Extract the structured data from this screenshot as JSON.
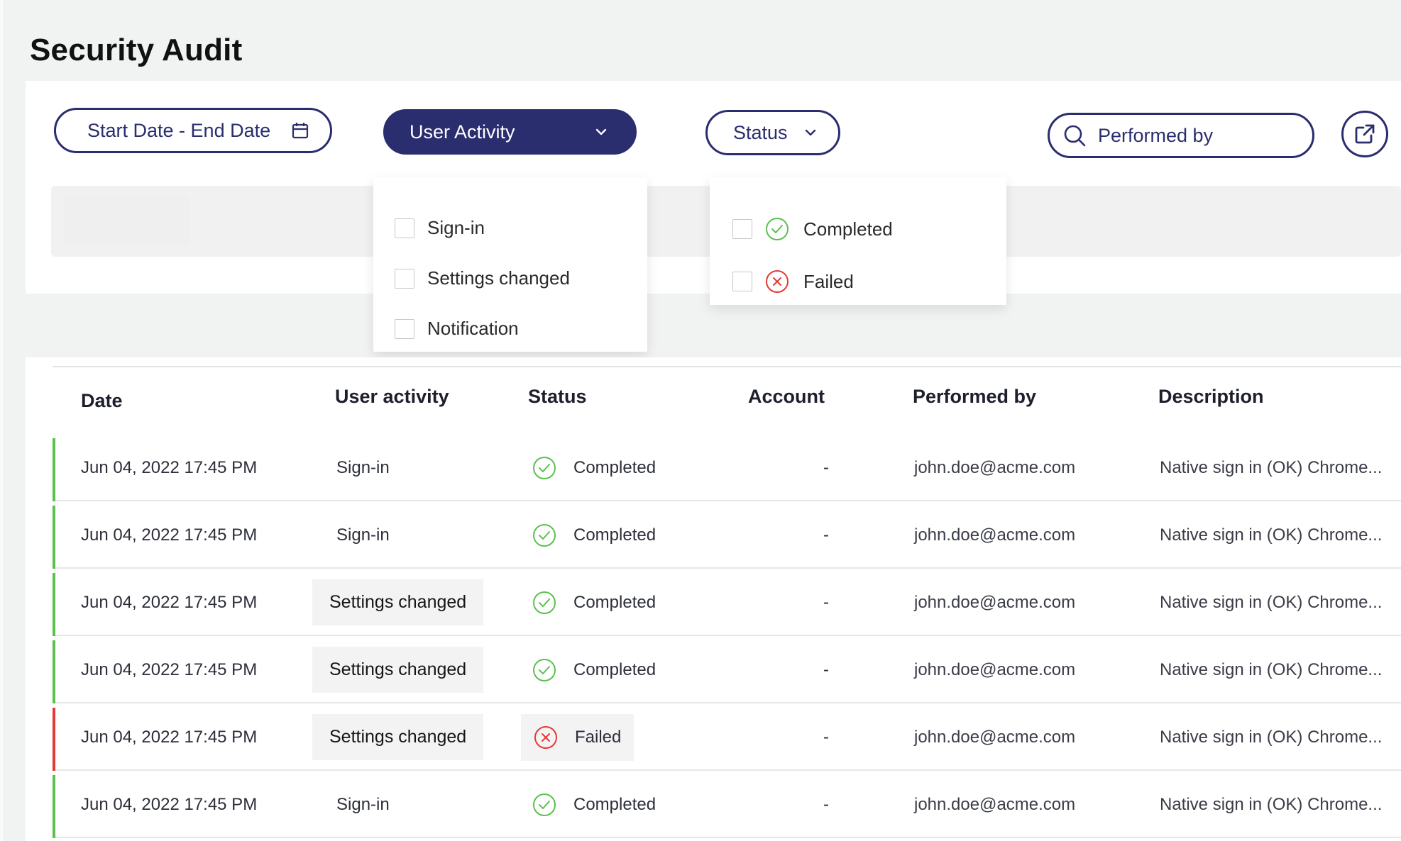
{
  "page": {
    "title": "Security Audit"
  },
  "colors": {
    "primary": "#2a2d6e",
    "success": "#5cc04f",
    "error": "#e53935"
  },
  "filters": {
    "date_range_label": "Start Date - End Date",
    "date_icon": "calendar-icon",
    "activity_label": "User Activity",
    "status_label": "Status",
    "search_placeholder": "Performed by",
    "export_icon": "export-icon"
  },
  "activity_menu": {
    "options": [
      {
        "label": "Sign-in",
        "checked": false
      },
      {
        "label": "Settings changed",
        "checked": false
      },
      {
        "label": "Notification",
        "checked": false
      }
    ]
  },
  "status_menu": {
    "options": [
      {
        "label": "Completed",
        "icon": "check-circle-icon",
        "checked": false
      },
      {
        "label": "Failed",
        "icon": "x-circle-icon",
        "checked": false
      }
    ]
  },
  "table": {
    "columns": [
      "Date",
      "User activity",
      "Status",
      "Account",
      "Performed by",
      "Description"
    ],
    "rows": [
      {
        "date": "Jun 04, 2022 17:45 PM",
        "activity": "Sign-in",
        "status": "Completed",
        "account": "-",
        "performed_by": "john.doe@acme.com",
        "description": "Native sign in (OK) Chrome..."
      },
      {
        "date": "Jun 04, 2022 17:45 PM",
        "activity": "Sign-in",
        "status": "Completed",
        "account": "-",
        "performed_by": "john.doe@acme.com",
        "description": "Native sign in (OK) Chrome..."
      },
      {
        "date": "Jun 04, 2022 17:45 PM",
        "activity": "Settings changed",
        "status": "Completed",
        "account": "-",
        "performed_by": "john.doe@acme.com",
        "description": "Native sign in (OK) Chrome..."
      },
      {
        "date": "Jun 04, 2022 17:45 PM",
        "activity": "Settings changed",
        "status": "Completed",
        "account": "-",
        "performed_by": "john.doe@acme.com",
        "description": "Native sign in (OK) Chrome..."
      },
      {
        "date": "Jun 04, 2022 17:45 PM",
        "activity": "Settings changed",
        "status": "Failed",
        "account": "-",
        "performed_by": "john.doe@acme.com",
        "description": "Native sign in (OK) Chrome..."
      },
      {
        "date": "Jun 04, 2022 17:45 PM",
        "activity": "Sign-in",
        "status": "Completed",
        "account": "-",
        "performed_by": "john.doe@acme.com",
        "description": "Native sign in (OK) Chrome..."
      }
    ]
  }
}
